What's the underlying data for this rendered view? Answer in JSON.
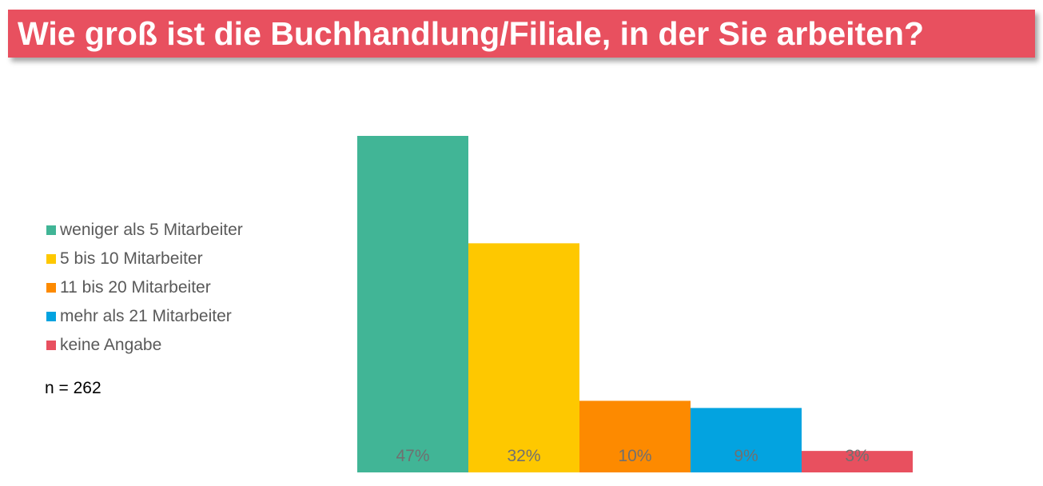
{
  "title": "Wie groß ist die Buchhandlung/Filiale, in der Sie arbeiten?",
  "colors": {
    "title_bg": "#e8505f",
    "title_text": "#ffffff"
  },
  "legend": [
    {
      "label": "weniger als 5 Mitarbeiter",
      "color": "#41b596"
    },
    {
      "label": "5 bis 10 Mitarbeiter",
      "color": "#fec800"
    },
    {
      "label": "11 bis 20 Mitarbeiter",
      "color": "#fd8a00"
    },
    {
      "label": "mehr als 21 Mitarbeiter",
      "color": "#03a3e0"
    },
    {
      "label": "keine Angabe",
      "color": "#e8505f"
    }
  ],
  "sample_size": "n = 262",
  "chart_data": {
    "type": "bar",
    "title": "Wie groß ist die Buchhandlung/Filiale, in der Sie arbeiten?",
    "categories": [
      "weniger als 5 Mitarbeiter",
      "5 bis 10 Mitarbeiter",
      "11 bis 20 Mitarbeiter",
      "mehr als 21 Mitarbeiter",
      "keine Angabe"
    ],
    "values": [
      47,
      32,
      10,
      9,
      3
    ],
    "data_labels": [
      "47%",
      "32%",
      "10%",
      "9%",
      "3%"
    ],
    "colors": [
      "#41b596",
      "#fec800",
      "#fd8a00",
      "#03a3e0",
      "#e8505f"
    ],
    "unit": "%",
    "ylim": [
      0,
      47
    ],
    "grid": false,
    "legend_position": "left"
  }
}
